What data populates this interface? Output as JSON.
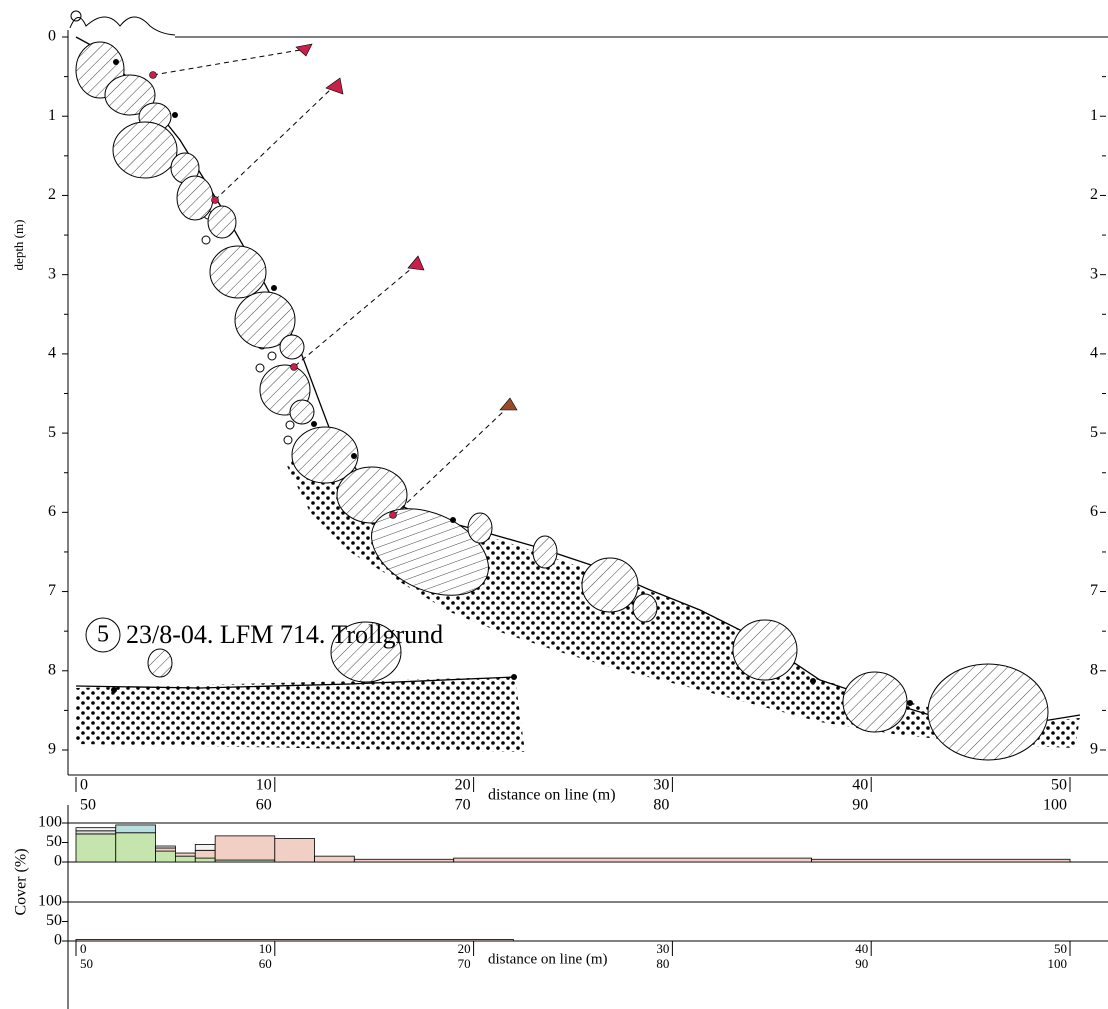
{
  "title": {
    "number": "5",
    "text": "23/8-04. LFM 714. Trollgrund"
  },
  "profile": {
    "y_label": "depth (m)",
    "depth_ticks": [
      0,
      1,
      2,
      3,
      4,
      5,
      6,
      7,
      8,
      9
    ],
    "right_ticks": [
      1,
      2,
      3,
      4,
      5,
      6,
      7,
      8,
      9
    ],
    "x_label": "distance on line (m)",
    "x_ticks_first_line": [
      0,
      10,
      20,
      30,
      40,
      50
    ],
    "x_ticks_second_line": [
      50,
      60,
      70,
      80,
      90,
      100
    ]
  },
  "cover": {
    "y_label": "Cover (%)",
    "ticks": [
      100,
      50,
      0
    ],
    "panels": [
      {
        "segments": [
          {
            "from": 0,
            "to": 2,
            "layers": [
              {
                "color": "#c6e4ad",
                "value": 72
              },
              {
                "color": "#dddddd",
                "value": 8
              },
              {
                "color": "#f4f4f4",
                "value": 8
              }
            ]
          },
          {
            "from": 2,
            "to": 4,
            "layers": [
              {
                "color": "#c6e4ad",
                "value": 75
              },
              {
                "color": "#b9dede",
                "value": 20
              }
            ]
          },
          {
            "from": 4,
            "to": 5,
            "layers": [
              {
                "color": "#c6e4ad",
                "value": 28
              },
              {
                "color": "#f2cfc4",
                "value": 8
              },
              {
                "color": "#f4f4f4",
                "value": 5
              }
            ]
          },
          {
            "from": 5,
            "to": 6,
            "layers": [
              {
                "color": "#c6e4ad",
                "value": 15
              },
              {
                "color": "#f2cfc4",
                "value": 8
              }
            ]
          },
          {
            "from": 6,
            "to": 7,
            "layers": [
              {
                "color": "#c6e4ad",
                "value": 10
              },
              {
                "color": "#f2cfc4",
                "value": 20
              },
              {
                "color": "#f4f4f4",
                "value": 15
              }
            ]
          },
          {
            "from": 7,
            "to": 10,
            "layers": [
              {
                "color": "#c6e4ad",
                "value": 5
              },
              {
                "color": "#f2cfc4",
                "value": 62
              }
            ]
          },
          {
            "from": 10,
            "to": 12,
            "layers": [
              {
                "color": "#f2cfc4",
                "value": 60
              }
            ]
          },
          {
            "from": 12,
            "to": 14,
            "layers": [
              {
                "color": "#f2cfc4",
                "value": 15
              }
            ]
          },
          {
            "from": 14,
            "to": 19,
            "layers": [
              {
                "color": "#f2cfc4",
                "value": 7
              }
            ]
          },
          {
            "from": 19,
            "to": 37,
            "layers": [
              {
                "color": "#f2cfc4",
                "value": 10
              }
            ]
          },
          {
            "from": 37,
            "to": 50,
            "layers": [
              {
                "color": "#f2cfc4",
                "value": 7
              }
            ]
          }
        ]
      },
      {
        "segments": [
          {
            "from": 0,
            "to": 22,
            "layers": [
              {
                "color": "#f2cfc4",
                "value": 4
              }
            ]
          }
        ]
      }
    ]
  }
}
